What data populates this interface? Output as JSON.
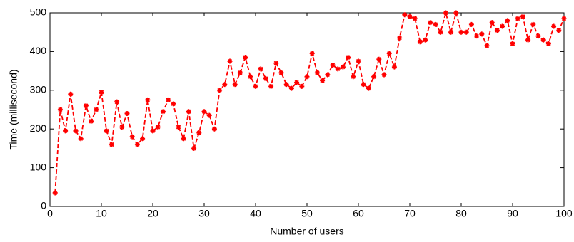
{
  "chart_data": {
    "type": "line",
    "xlabel": "Number of users",
    "ylabel": "Time (millisecond)",
    "x": [
      1,
      2,
      3,
      4,
      5,
      6,
      7,
      8,
      9,
      10,
      11,
      12,
      13,
      14,
      15,
      16,
      17,
      18,
      19,
      20,
      21,
      22,
      23,
      24,
      25,
      26,
      27,
      28,
      29,
      30,
      31,
      32,
      33,
      34,
      35,
      36,
      37,
      38,
      39,
      40,
      41,
      42,
      43,
      44,
      45,
      46,
      47,
      48,
      49,
      50,
      51,
      52,
      53,
      54,
      55,
      56,
      57,
      58,
      59,
      60,
      61,
      62,
      63,
      64,
      65,
      66,
      67,
      68,
      69,
      70,
      71,
      72,
      73,
      74,
      75,
      76,
      77,
      78,
      79,
      80,
      81,
      82,
      83,
      84,
      85,
      86,
      87,
      88,
      89,
      90,
      91,
      92,
      93,
      94,
      95,
      96,
      97,
      98,
      99,
      100
    ],
    "series": [
      {
        "color": "#ff0000",
        "values": [
          35,
          250,
          195,
          290,
          195,
          175,
          260,
          220,
          250,
          295,
          195,
          160,
          270,
          205,
          240,
          180,
          160,
          175,
          275,
          195,
          205,
          245,
          275,
          265,
          205,
          175,
          245,
          150,
          190,
          245,
          235,
          200,
          300,
          315,
          375,
          315,
          345,
          385,
          335,
          310,
          355,
          330,
          310,
          370,
          345,
          315,
          305,
          320,
          310,
          335,
          395,
          345,
          325,
          340,
          365,
          355,
          360,
          385,
          335,
          375,
          315,
          305,
          335,
          380,
          340,
          395,
          360,
          435,
          495,
          490,
          485,
          425,
          430,
          475,
          470,
          450,
          500,
          450,
          500,
          450,
          450,
          470,
          440,
          445,
          415,
          475,
          455,
          465,
          480,
          420,
          485,
          490,
          430,
          470,
          440,
          430,
          420,
          465,
          455,
          485
        ]
      }
    ],
    "xlim": [
      0,
      100
    ],
    "xticks": [
      0,
      10,
      20,
      30,
      40,
      50,
      60,
      70,
      80,
      90,
      100
    ],
    "ylim": [
      0,
      500
    ],
    "yticks": [
      0,
      100,
      200,
      300,
      400,
      500
    ]
  }
}
